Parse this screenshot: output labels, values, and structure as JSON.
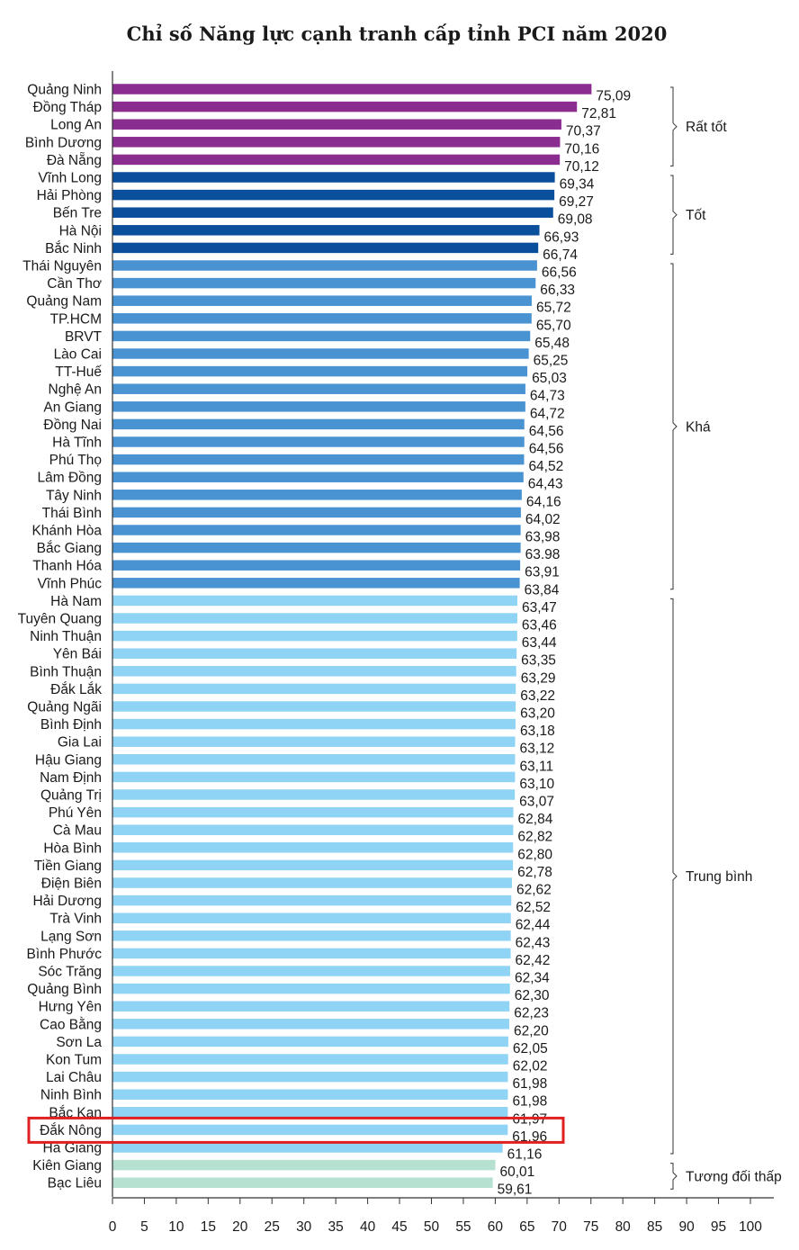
{
  "chart_data": {
    "type": "bar",
    "orientation": "horizontal",
    "title": "Chỉ số Năng lực cạnh tranh cấp tỉnh PCI năm 2020",
    "xlim": [
      0,
      100
    ],
    "xticks": [
      "0",
      "5",
      "10",
      "15",
      "20",
      "25",
      "30",
      "35",
      "40",
      "45",
      "50",
      "55",
      "60",
      "65",
      "70",
      "75",
      "80",
      "85",
      "90",
      "95",
      "100"
    ],
    "grid": false,
    "categories": [
      "Quảng Ninh",
      "Đồng Tháp",
      "Long An",
      "Bình Dương",
      "Đà Nẵng",
      "Vĩnh Long",
      "Hải Phòng",
      "Bến Tre",
      "Hà Nội",
      "Bắc Ninh",
      "Thái Nguyên",
      "Cần Thơ",
      "Quảng Nam",
      "TP.HCM",
      "BRVT",
      "Lào Cai",
      "TT-Huế",
      "Nghệ An",
      "An Giang",
      "Đồng Nai",
      "Hà Tĩnh",
      "Phú Thọ",
      "Lâm Đồng",
      "Tây Ninh",
      "Thái Bình",
      "Khánh Hòa",
      "Bắc Giang",
      "Thanh Hóa",
      "Vĩnh Phúc",
      "Hà Nam",
      "Tuyên Quang",
      "Ninh Thuận",
      "Yên Bái",
      "Bình Thuận",
      "Đắk Lắk",
      "Quảng Ngãi",
      "Bình Định",
      "Gia Lai",
      "Hậu Giang",
      "Nam Định",
      "Quảng Trị",
      "Phú Yên",
      "Cà Mau",
      "Hòa Bình",
      "Tiền Giang",
      "Điện Biên",
      "Hải Dương",
      "Trà Vinh",
      "Lạng Sơn",
      "Bình Phước",
      "Sóc Trăng",
      "Quảng Bình",
      "Hưng Yên",
      "Cao Bằng",
      "Sơn La",
      "Kon Tum",
      "Lai Châu",
      "Ninh Bình",
      "Bắc Kạn",
      "Đắk Nông",
      "Hà Giang",
      "Kiên Giang",
      "Bạc Liêu"
    ],
    "values": [
      75.09,
      72.81,
      70.37,
      70.16,
      70.12,
      69.34,
      69.27,
      69.08,
      66.93,
      66.74,
      66.56,
      66.33,
      65.72,
      65.7,
      65.48,
      65.25,
      65.03,
      64.73,
      64.72,
      64.56,
      64.56,
      64.52,
      64.43,
      64.16,
      64.02,
      63.98,
      63.98,
      63.91,
      63.84,
      63.47,
      63.46,
      63.44,
      63.35,
      63.29,
      63.22,
      63.2,
      63.18,
      63.12,
      63.11,
      63.1,
      63.07,
      62.84,
      62.82,
      62.8,
      62.78,
      62.62,
      62.52,
      62.44,
      62.43,
      62.42,
      62.34,
      62.3,
      62.23,
      62.2,
      62.05,
      62.02,
      61.98,
      61.98,
      61.97,
      61.96,
      61.16,
      60.01,
      59.61
    ],
    "value_labels": [
      "75,09",
      "72,81",
      "70,37",
      "70,16",
      "70,12",
      "69,34",
      "69,27",
      "69,08",
      "66,93",
      "66,74",
      "66,56",
      "66,33",
      "65,72",
      "65,70",
      "65,48",
      "65,25",
      "65,03",
      "64,73",
      "64,72",
      "64,56",
      "64,56",
      "64,52",
      "64,43",
      "64,16",
      "64,02",
      "63,98",
      "63.98",
      "63,91",
      "63,84",
      "63,47",
      "63,46",
      "63,44",
      "63,35",
      "63,29",
      "63,22",
      "63,20",
      "63,18",
      "63,12",
      "63,11",
      "63,10",
      "63,07",
      "62,84",
      "62,82",
      "62,80",
      "62,78",
      "62,62",
      "62,52",
      "62,44",
      "62,43",
      "62,42",
      "62,34",
      "62,30",
      "62,23",
      "62,20",
      "62,05",
      "62,02",
      "61,98",
      "61,98",
      "61,97",
      "61,96",
      "61,16",
      "60,01",
      "59,61"
    ],
    "groups": [
      {
        "name": "Rất tốt",
        "from": 0,
        "to": 4,
        "color": "#8b2c91"
      },
      {
        "name": "Tốt",
        "from": 5,
        "to": 9,
        "color": "#0a4f9c"
      },
      {
        "name": "Khá",
        "from": 10,
        "to": 28,
        "color": "#4a93d2"
      },
      {
        "name": "Trung bình",
        "from": 29,
        "to": 60,
        "color": "#8fd3f5"
      },
      {
        "name": "Tương đối thấp",
        "from": 61,
        "to": 62,
        "color": "#b6e0cf"
      }
    ],
    "highlight_index": 59,
    "highlight_color": "#e02020"
  }
}
